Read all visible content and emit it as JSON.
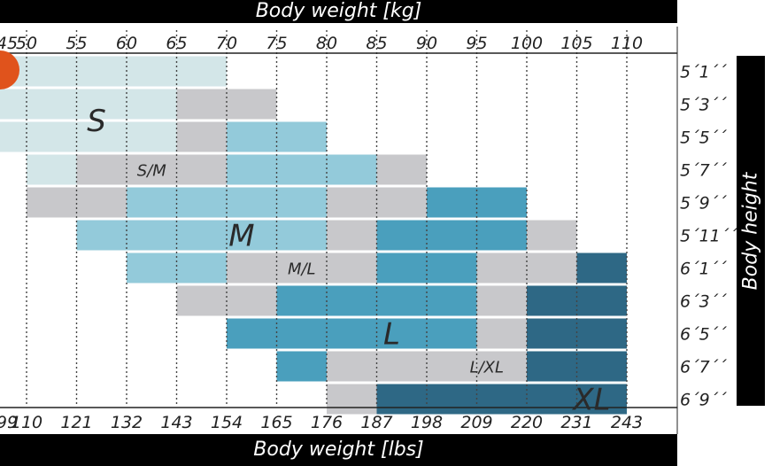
{
  "header": {
    "top_label": "Body weight [kg]",
    "bottom_label": "Body weight [lbs]",
    "side_label": "Body height"
  },
  "chart_data": {
    "type": "table",
    "title": "",
    "x_kg": [
      45,
      50,
      55,
      60,
      65,
      70,
      75,
      80,
      85,
      90,
      95,
      100,
      105,
      110
    ],
    "x_kg_labels": [
      "45",
      "50",
      "55",
      "60",
      "65",
      "70",
      "75",
      "80",
      "85",
      "90",
      "95",
      "100",
      "105",
      "110"
    ],
    "x_lbs_labels": [
      "99",
      "110",
      "121",
      "132",
      "143",
      "154",
      "165",
      "176",
      "187",
      "198",
      "209",
      "220",
      "231",
      "243"
    ],
    "y_labels": [
      "5´1´´",
      "5´3´´",
      "5´5´´",
      "5´7´´",
      "5´9´´",
      "5´11´´",
      "6´1´´",
      "6´3´´",
      "6´5´´",
      "6´7´´",
      "6´9´´"
    ],
    "colors": {
      "S": "#d3e6e8",
      "S/M": "#c8c8cb",
      "M": "#93cada",
      "M/L": "#c8c8cb",
      "L": "#4a9fbd",
      "L/XL": "#c8c8cb",
      "XL": "#2e6885"
    },
    "cells": [
      {
        "row": "5´1´´",
        "S": [
          45,
          70
        ]
      },
      {
        "row": "5´3´´",
        "S": [
          45,
          65
        ],
        "S/M": [
          65,
          75
        ]
      },
      {
        "row": "5´5´´",
        "S": [
          45,
          65
        ],
        "S/M": [
          65,
          70
        ],
        "M": [
          70,
          80
        ]
      },
      {
        "row": "5´7´´",
        "S": [
          50,
          55
        ],
        "S/M": [
          55,
          70
        ],
        "M": [
          70,
          85
        ],
        "M/L": [
          85,
          90
        ]
      },
      {
        "row": "5´9´´",
        "S/M": [
          50,
          60
        ],
        "M": [
          60,
          80
        ],
        "M/L": [
          80,
          90
        ],
        "L": [
          90,
          100
        ]
      },
      {
        "row": "5´11´´",
        "M": [
          55,
          80
        ],
        "M/L": [
          80,
          85
        ],
        "L": [
          85,
          100
        ],
        "L/XL": [
          100,
          105
        ]
      },
      {
        "row": "6´1´´",
        "M": [
          60,
          70
        ],
        "M/L": [
          70,
          85
        ],
        "L": [
          85,
          95
        ],
        "L/XL": [
          95,
          105
        ],
        "XL": [
          105,
          110
        ]
      },
      {
        "row": "6´3´´",
        "M/L": [
          65,
          75
        ],
        "L": [
          75,
          95
        ],
        "L/XL": [
          95,
          100
        ],
        "XL": [
          100,
          110
        ]
      },
      {
        "row": "6´5´´",
        "L": [
          70,
          95
        ],
        "L/XL": [
          95,
          100
        ],
        "XL": [
          100,
          110
        ]
      },
      {
        "row": "6´7´´",
        "L": [
          75,
          80
        ],
        "L/XL": [
          80,
          100
        ],
        "XL": [
          100,
          110
        ]
      },
      {
        "row": "6´9´´",
        "L/XL": [
          80,
          85
        ],
        "XL": [
          85,
          110
        ]
      }
    ],
    "size_labels": [
      {
        "text": "S",
        "kg": 57,
        "row": 2
      },
      {
        "text": "S/M",
        "kg": 62.5,
        "row": 3.5
      },
      {
        "text": "M",
        "kg": 71.5,
        "row": 5.5
      },
      {
        "text": "M/L",
        "kg": 77.5,
        "row": 6.5
      },
      {
        "text": "L",
        "kg": 86.5,
        "row": 8.5
      },
      {
        "text": "L/XL",
        "kg": 96,
        "row": 9.5
      },
      {
        "text": "XL",
        "kg": 106.5,
        "row": 10.5
      }
    ],
    "grid": true
  }
}
